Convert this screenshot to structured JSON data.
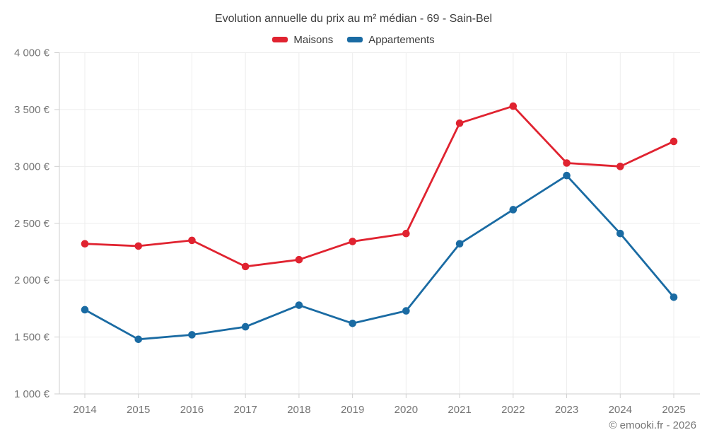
{
  "chart": {
    "title": "Evolution annuelle du prix au m² médian - 69 - Sain-Bel",
    "attribution": "© emooki.fr - 2026"
  },
  "chart_data": {
    "type": "line",
    "title": "Evolution annuelle du prix au m² médian - 69 - Sain-Bel",
    "x": [
      "2014",
      "2015",
      "2016",
      "2017",
      "2018",
      "2019",
      "2020",
      "2021",
      "2022",
      "2023",
      "2024",
      "2025"
    ],
    "series": [
      {
        "name": "Maisons",
        "color": "#e02330",
        "values": [
          2320,
          2300,
          2350,
          2120,
          2180,
          2340,
          2410,
          3380,
          3530,
          3030,
          3000,
          3220
        ]
      },
      {
        "name": "Appartements",
        "color": "#1a6ba3",
        "values": [
          1740,
          1480,
          1520,
          1590,
          1780,
          1620,
          1730,
          2320,
          2620,
          2920,
          2410,
          1850
        ]
      }
    ],
    "xlabel": "",
    "ylabel": "",
    "ylim": [
      1000,
      4000
    ],
    "ytick_step": 500,
    "ytick_labels": [
      "1 000 €",
      "1 500 €",
      "2 000 €",
      "2 500 €",
      "3 000 €",
      "3 500 €",
      "4 000 €"
    ],
    "grid": true,
    "legend_position": "top-center",
    "marker": "circle",
    "axis_color": "#cfcfcf",
    "grid_color": "#ededed",
    "tick_label_color": "#757575"
  }
}
